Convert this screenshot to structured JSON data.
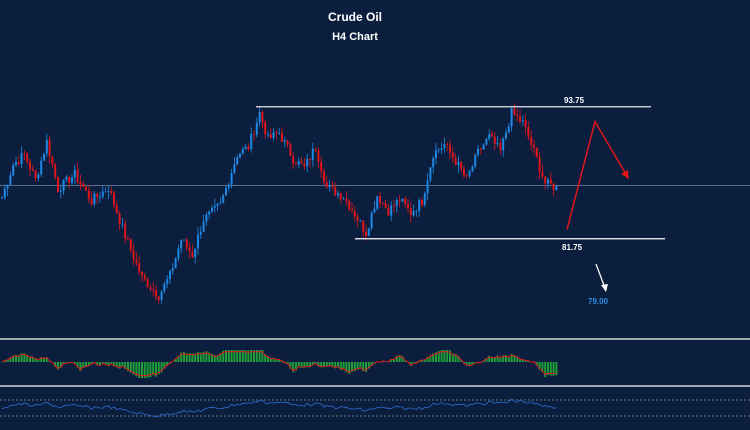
{
  "chart_data": {
    "type": "candlestick",
    "title": "Crude Oil",
    "subtitle": "H4 Chart",
    "ylim": [
      73.0,
      98.0
    ],
    "levels": [
      {
        "label": "93.75",
        "value": 93.75,
        "color": "#e8e8e8"
      },
      {
        "label": "81.75",
        "value": 81.75,
        "color": "#ffffff"
      }
    ],
    "target": {
      "label": "79.00",
      "value": 79.0,
      "color": "#2f8fe6"
    },
    "reference_line": 86.6,
    "projection": {
      "color": "#e0151b",
      "points": [
        {
          "x_bar": 200,
          "value": 82.6
        },
        {
          "x_bar": 210,
          "value": 92.4
        },
        {
          "x_bar": 222,
          "value": 87.2
        }
      ]
    },
    "bull_color": "#1e88e5",
    "bear_color": "#e0151b",
    "price_path": [
      [
        0,
        85.5
      ],
      [
        4,
        88.5
      ],
      [
        8,
        89.4
      ],
      [
        12,
        87.1
      ],
      [
        16,
        90.6
      ],
      [
        20,
        86.3
      ],
      [
        26,
        87.6
      ],
      [
        32,
        85.2
      ],
      [
        38,
        86.4
      ],
      [
        44,
        82.0
      ],
      [
        50,
        78.2
      ],
      [
        56,
        76.6
      ],
      [
        60,
        78.4
      ],
      [
        64,
        81.7
      ],
      [
        68,
        80.3
      ],
      [
        72,
        83.5
      ],
      [
        78,
        84.8
      ],
      [
        84,
        89.4
      ],
      [
        88,
        90.1
      ],
      [
        92,
        93.2
      ],
      [
        95,
        90.8
      ],
      [
        99,
        91.4
      ],
      [
        104,
        89.0
      ],
      [
        108,
        88.2
      ],
      [
        112,
        90.1
      ],
      [
        116,
        86.4
      ],
      [
        122,
        85.6
      ],
      [
        126,
        84.0
      ],
      [
        130,
        82.3
      ],
      [
        134,
        85.7
      ],
      [
        138,
        84.3
      ],
      [
        142,
        85.3
      ],
      [
        146,
        84.1
      ],
      [
        150,
        85.2
      ],
      [
        154,
        89.5
      ],
      [
        158,
        90.3
      ],
      [
        162,
        88.8
      ],
      [
        166,
        87.1
      ],
      [
        170,
        89.6
      ],
      [
        174,
        91.0
      ],
      [
        178,
        89.7
      ],
      [
        182,
        93.2
      ],
      [
        186,
        92.3
      ],
      [
        190,
        89.7
      ],
      [
        194,
        86.8
      ],
      [
        198,
        86.4
      ]
    ],
    "indicators": [
      {
        "type": "histogram",
        "color": "#1f9e3a",
        "signal_color": "#e0151b"
      },
      {
        "type": "line",
        "color": "#2f6fd0",
        "levels_color": "#c8c8c8"
      }
    ]
  }
}
